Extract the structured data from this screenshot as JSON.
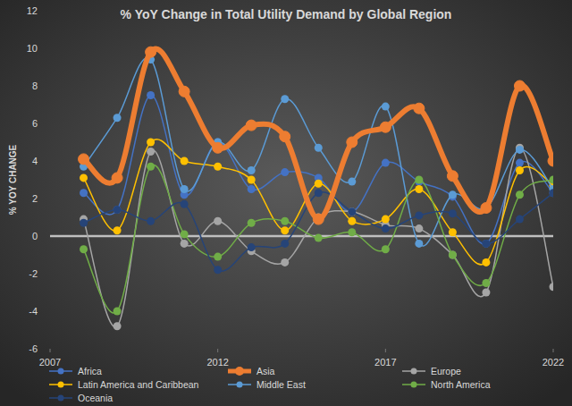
{
  "chart_data": {
    "type": "line",
    "title": "% YoY Change in Total Utility Demand by Global Region",
    "y_label": "% YOY CHANGE",
    "x": [
      2008,
      2009,
      2010,
      2011,
      2012,
      2013,
      2014,
      2015,
      2016,
      2017,
      2018,
      2019,
      2020,
      2021,
      2022
    ],
    "series": [
      {
        "name": "Africa",
        "color": "#4472c4",
        "marker": "circle",
        "line_style": "solid",
        "values": [
          2.3,
          1.4,
          7.5,
          2.2,
          5.0,
          2.5,
          3.4,
          3.1,
          1.3,
          3.9,
          2.9,
          2.1,
          -0.4,
          3.9,
          2.3
        ]
      },
      {
        "name": "Asia",
        "color": "#ed7d31",
        "marker": "circle",
        "line_style": "thick",
        "values": [
          4.1,
          3.1,
          9.8,
          7.7,
          4.7,
          5.9,
          5.3,
          0.9,
          5.0,
          5.8,
          6.8,
          3.2,
          1.5,
          8.0,
          4.0
        ]
      },
      {
        "name": "Europe",
        "color": "#a5a5a5",
        "marker": "circle",
        "line_style": "solid",
        "values": [
          0.9,
          -4.8,
          4.5,
          -0.4,
          0.8,
          -0.8,
          -1.4,
          1.0,
          1.3,
          0.6,
          0.4,
          -1.0,
          -3.0,
          4.7,
          -2.7
        ]
      },
      {
        "name": "Latin America and Caribbean",
        "color": "#ffc000",
        "marker": "circle",
        "line_style": "solid",
        "values": [
          3.1,
          0.3,
          5.0,
          4.0,
          3.7,
          3.0,
          0.3,
          2.8,
          0.8,
          0.9,
          2.5,
          0.2,
          -1.4,
          3.5,
          2.7
        ]
      },
      {
        "name": "Middle East",
        "color": "#5b9bd5",
        "marker": "circle",
        "line_style": "solid",
        "values": [
          3.7,
          6.3,
          9.4,
          2.5,
          5.0,
          3.5,
          7.3,
          4.7,
          2.9,
          6.9,
          -0.4,
          2.2,
          1.5,
          4.6,
          2.5
        ]
      },
      {
        "name": "North America",
        "color": "#70ad47",
        "marker": "circle",
        "line_style": "solid",
        "values": [
          -0.7,
          -4.0,
          3.7,
          0.1,
          -1.1,
          0.7,
          0.8,
          -0.1,
          0.2,
          -0.7,
          3.0,
          -1.0,
          -2.5,
          2.2,
          3.0
        ]
      },
      {
        "name": "Oceania",
        "color": "#264478",
        "marker": "circle",
        "line_style": "solid",
        "values": [
          0.7,
          1.4,
          0.8,
          1.7,
          -1.8,
          -0.6,
          -0.4,
          2.3,
          1.3,
          0.4,
          1.1,
          1.2,
          -0.4,
          0.9,
          2.3
        ]
      }
    ],
    "xlim": [
      2007,
      2022
    ],
    "xticks": [
      2007,
      2012,
      2017,
      2022
    ],
    "ylim": [
      -6,
      12
    ],
    "yticks": [
      -6,
      -4,
      -2,
      0,
      2,
      4,
      6,
      8,
      10,
      12
    ],
    "grid": false,
    "legend": "bottom"
  }
}
